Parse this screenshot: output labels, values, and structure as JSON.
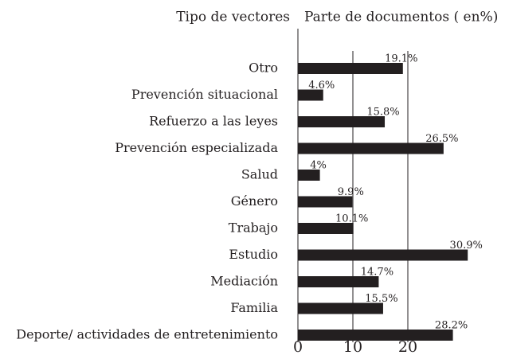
{
  "chart_data": {
    "type": "hbar",
    "ylabel": "Tipo de vectores",
    "xlabel": "Parte de documentos ( en%)",
    "categories": [
      "Otro",
      "Prevención situacional",
      "Refuerzo a las leyes",
      "Prevención especializada",
      "Salud",
      "Género",
      "Trabajo",
      "Estudio",
      "Mediación",
      "Familia",
      "Deporte/ actividades de entretenimiento"
    ],
    "values": [
      19.1,
      4.6,
      15.8,
      26.5,
      4,
      9.9,
      10.1,
      30.9,
      14.7,
      15.5,
      28.2
    ],
    "value_labels": [
      "19.1%",
      "4.6%",
      "15.8%",
      "26.5%",
      "4%",
      "9.9%",
      "10.1%",
      "30.9%",
      "14.7%",
      "15.5%",
      "28.2%"
    ],
    "color": "#231f20",
    "xlim": [
      0,
      33
    ],
    "xticks": [
      0,
      10,
      20
    ],
    "grid": true
  }
}
